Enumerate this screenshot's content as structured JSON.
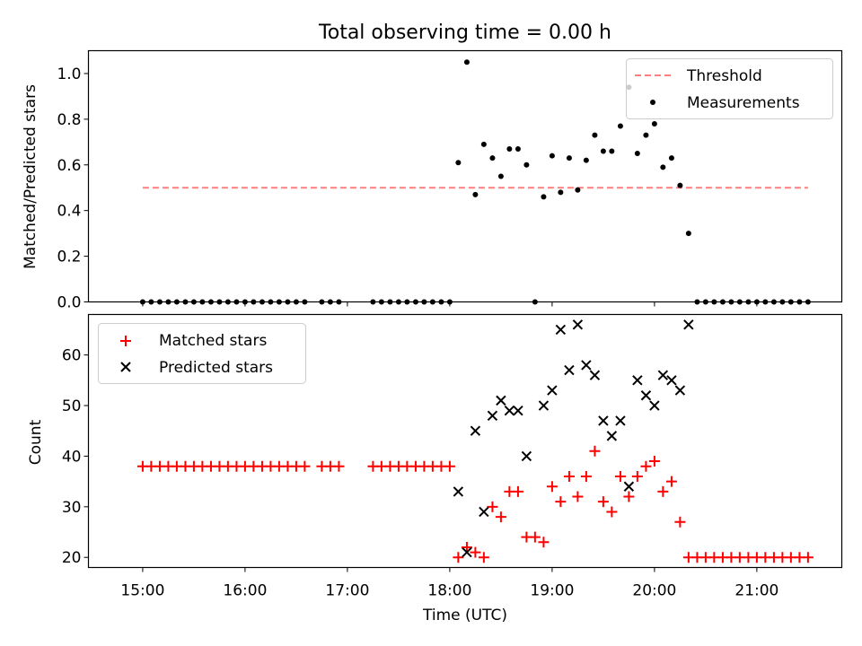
{
  "title": "Total observing time = 0.00 h",
  "colors": {
    "threshold": "#ff7f7f",
    "measurements": "#000000",
    "matched": "#ff0000",
    "predicted": "#000000"
  },
  "chart_data": [
    {
      "type": "scatter",
      "ylabel": "Matched/Predicted stars",
      "xlim": [
        14.47,
        21.83
      ],
      "ylim": [
        0,
        1.1
      ],
      "yticks": [
        0.0,
        0.2,
        0.4,
        0.6,
        0.8,
        1.0
      ],
      "ytick_labels": [
        "0.0",
        "0.2",
        "0.4",
        "0.6",
        "0.8",
        "1.0"
      ],
      "legend": {
        "placement": "top-right",
        "entries": [
          "Threshold",
          "Measurements"
        ]
      },
      "threshold": {
        "name": "Threshold",
        "value": 0.5,
        "x_range": [
          15.0,
          21.5
        ]
      },
      "measurements": {
        "name": "Measurements",
        "x": [
          15.0,
          15.083,
          15.167,
          15.25,
          15.333,
          15.417,
          15.5,
          15.583,
          15.667,
          15.75,
          15.833,
          15.917,
          16.0,
          16.083,
          16.167,
          16.25,
          16.333,
          16.417,
          16.5,
          16.583,
          16.75,
          16.833,
          16.917,
          17.25,
          17.333,
          17.417,
          17.5,
          17.583,
          17.667,
          17.75,
          17.833,
          17.917,
          18.0,
          18.083,
          18.167,
          18.25,
          18.333,
          18.417,
          18.5,
          18.583,
          18.667,
          18.75,
          18.833,
          18.917,
          19.0,
          19.083,
          19.167,
          19.25,
          19.333,
          19.417,
          19.5,
          19.583,
          19.667,
          19.75,
          19.833,
          19.917,
          20.0,
          20.083,
          20.167,
          20.25,
          20.333,
          20.417,
          20.5,
          20.583,
          20.667,
          20.75,
          20.833,
          20.917,
          21.0,
          21.083,
          21.167,
          21.25,
          21.333,
          21.417,
          21.5
        ],
        "y": [
          0,
          0,
          0,
          0,
          0,
          0,
          0,
          0,
          0,
          0,
          0,
          0,
          0,
          0,
          0,
          0,
          0,
          0,
          0,
          0,
          0,
          0,
          0,
          0,
          0,
          0,
          0,
          0,
          0,
          0,
          0,
          0,
          0,
          0.61,
          1.05,
          0.47,
          0.69,
          0.63,
          0.55,
          0.67,
          0.67,
          0.6,
          0.0,
          0.46,
          0.64,
          0.48,
          0.63,
          0.49,
          0.62,
          0.73,
          0.66,
          0.66,
          0.77,
          0.94,
          0.65,
          0.73,
          0.78,
          0.59,
          0.63,
          0.51,
          0.3,
          0,
          0,
          0,
          0,
          0,
          0,
          0,
          0,
          0,
          0,
          0,
          0,
          0,
          0
        ]
      }
    },
    {
      "type": "scatter",
      "xlabel": "Time (UTC)",
      "ylabel": "Count",
      "xlim": [
        14.47,
        21.83
      ],
      "ylim": [
        18,
        68
      ],
      "xticks": [
        15,
        16,
        17,
        18,
        19,
        20,
        21
      ],
      "xtick_labels": [
        "15:00",
        "16:00",
        "17:00",
        "18:00",
        "19:00",
        "20:00",
        "21:00"
      ],
      "yticks": [
        20,
        30,
        40,
        50,
        60
      ],
      "ytick_labels": [
        "20",
        "30",
        "40",
        "50",
        "60"
      ],
      "legend": {
        "placement": "top-left",
        "entries": [
          "Matched stars",
          "Predicted stars"
        ]
      },
      "matched": {
        "name": "Matched stars",
        "x": [
          15.0,
          15.083,
          15.167,
          15.25,
          15.333,
          15.417,
          15.5,
          15.583,
          15.667,
          15.75,
          15.833,
          15.917,
          16.0,
          16.083,
          16.167,
          16.25,
          16.333,
          16.417,
          16.5,
          16.583,
          16.75,
          16.833,
          16.917,
          17.25,
          17.333,
          17.417,
          17.5,
          17.583,
          17.667,
          17.75,
          17.833,
          17.917,
          18.0,
          18.083,
          18.167,
          18.25,
          18.333,
          18.417,
          18.5,
          18.583,
          18.667,
          18.75,
          18.833,
          18.917,
          19.0,
          19.083,
          19.167,
          19.25,
          19.333,
          19.417,
          19.5,
          19.583,
          19.667,
          19.75,
          19.833,
          19.917,
          20.0,
          20.083,
          20.167,
          20.25,
          20.333,
          20.417,
          20.5,
          20.583,
          20.667,
          20.75,
          20.833,
          20.917,
          21.0,
          21.083,
          21.167,
          21.25,
          21.333,
          21.417,
          21.5
        ],
        "y": [
          38,
          38,
          38,
          38,
          38,
          38,
          38,
          38,
          38,
          38,
          38,
          38,
          38,
          38,
          38,
          38,
          38,
          38,
          38,
          38,
          38,
          38,
          38,
          38,
          38,
          38,
          38,
          38,
          38,
          38,
          38,
          38,
          38,
          20,
          22,
          21,
          20,
          30,
          28,
          33,
          33,
          24,
          24,
          23,
          34,
          31,
          36,
          32,
          36,
          41,
          31,
          29,
          36,
          32,
          36,
          38,
          39,
          33,
          35,
          27,
          20,
          20,
          20,
          20,
          20,
          20,
          20,
          20,
          20,
          20,
          20,
          20,
          20,
          20,
          20
        ]
      },
      "predicted": {
        "name": "Predicted stars",
        "x": [
          18.083,
          18.167,
          18.25,
          18.333,
          18.417,
          18.5,
          18.583,
          18.667,
          18.75,
          18.917,
          19.0,
          19.083,
          19.167,
          19.25,
          19.333,
          19.417,
          19.5,
          19.583,
          19.667,
          19.75,
          19.833,
          19.917,
          20.0,
          20.083,
          20.167,
          20.25,
          20.333
        ],
        "y": [
          33,
          21,
          45,
          29,
          48,
          51,
          49,
          49,
          40,
          50,
          53,
          65,
          57,
          66,
          58,
          56,
          47,
          44,
          47,
          34,
          55,
          52,
          50,
          56,
          55,
          53,
          66
        ]
      }
    }
  ]
}
